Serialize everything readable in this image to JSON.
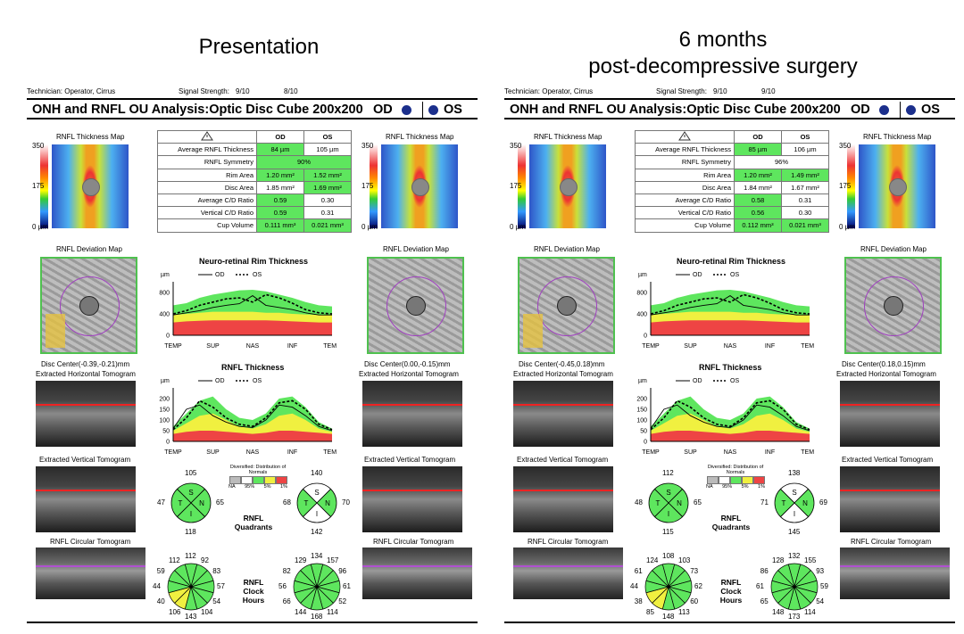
{
  "titles": {
    "left": "Presentation",
    "right_l1": "6 months",
    "right_l2": "post-decompressive surgery"
  },
  "reports": [
    {
      "technician": "Technician:  Operator, Cirrus",
      "signal_label": "Signal Strength:",
      "signal_od": "9/10",
      "signal_os": "8/10",
      "title": "ONH and RNFL OU Analysis:Optic Disc Cube 200x200",
      "od": "OD",
      "os": "OS",
      "map_title": "RNFL Thickness Map",
      "scale": [
        "350",
        "175",
        "0 µm"
      ],
      "table": {
        "head": [
          "OD",
          "OS"
        ],
        "rows": [
          {
            "label": "Average RNFL Thickness",
            "od": "84 µm",
            "os": "105 µm",
            "odg": true,
            "osg": false
          },
          {
            "label": "RNFL Symmetry",
            "span": "90%",
            "g": true
          },
          {
            "label": "Rim Area",
            "od": "1.20 mm²",
            "os": "1.52 mm²",
            "odg": true,
            "osg": true
          },
          {
            "label": "Disc Area",
            "od": "1.85 mm²",
            "os": "1.69 mm²",
            "odg": false,
            "osg": true
          },
          {
            "label": "Average C/D Ratio",
            "od": "0.59",
            "os": "0.30",
            "odg": true,
            "osg": false
          },
          {
            "label": "Vertical C/D Ratio",
            "od": "0.59",
            "os": "0.31",
            "odg": true,
            "osg": false
          },
          {
            "label": "Cup Volume",
            "od": "0.111 mm³",
            "os": "0.021 mm³",
            "odg": true,
            "osg": true
          }
        ]
      },
      "dev_title": "RNFL Deviation Map",
      "disc_od": "Disc Center(-0.39,-0.21)mm",
      "disc_os": "Disc Center(0.00,-0.15)mm",
      "horiz": "Extracted Horizontal Tomogram",
      "vert": "Extracted Vertical Tomogram",
      "circ": "RNFL Circular Tomogram",
      "rim_title": "Neuro-retinal Rim Thickness",
      "rnfl_title": "RNFL Thickness",
      "um": "µm",
      "leg_od": "OD",
      "leg_os": "OS",
      "rim_ticks": [
        "800",
        "400",
        "0"
      ],
      "rnfl_ticks": [
        "200",
        "150",
        "100",
        "50",
        "0"
      ],
      "xticks": [
        "TEMP",
        "SUP",
        "NAS",
        "INF",
        "TEMP"
      ],
      "norm_title": "Diversified: Distribution of Normals",
      "norm_labels": [
        "NA",
        "95%",
        "5%",
        "1%"
      ],
      "quad_label": [
        "RNFL",
        "Quadrants"
      ],
      "clock_label": [
        "RNFL",
        "Clock",
        "Hours"
      ],
      "quad_od": {
        "top": "105",
        "left": "47",
        "right": "65",
        "bottom": "118"
      },
      "quad_os": {
        "top": "140",
        "left": "68",
        "right": "70",
        "bottom": "142"
      },
      "clock_od": [
        "112",
        "92",
        "83",
        "57",
        "54",
        "104",
        "143",
        "106",
        "40",
        "44",
        "59",
        "112"
      ],
      "clock_os": [
        "134",
        "157",
        "96",
        "61",
        "52",
        "114",
        "168",
        "144",
        "66",
        "56",
        "82",
        "129"
      ]
    },
    {
      "technician": "Technician:  Operator, Cirrus",
      "signal_label": "Signal Strength:",
      "signal_od": "9/10",
      "signal_os": "9/10",
      "title": "ONH and RNFL OU Analysis:Optic Disc Cube 200x200",
      "od": "OD",
      "os": "OS",
      "map_title": "RNFL Thickness Map",
      "scale": [
        "350",
        "175",
        "0 µm"
      ],
      "table": {
        "head": [
          "OD",
          "OS"
        ],
        "rows": [
          {
            "label": "Average RNFL Thickness",
            "od": "85 µm",
            "os": "106 µm",
            "odg": true,
            "osg": false
          },
          {
            "label": "RNFL Symmetry",
            "span": "96%",
            "g": false
          },
          {
            "label": "Rim Area",
            "od": "1.20 mm²",
            "os": "1.49 mm²",
            "odg": true,
            "osg": true
          },
          {
            "label": "Disc Area",
            "od": "1.84 mm²",
            "os": "1.67 mm²",
            "odg": false,
            "osg": false
          },
          {
            "label": "Average C/D Ratio",
            "od": "0.58",
            "os": "0.31",
            "odg": true,
            "osg": false
          },
          {
            "label": "Vertical C/D Ratio",
            "od": "0.56",
            "os": "0.30",
            "odg": true,
            "osg": false
          },
          {
            "label": "Cup Volume",
            "od": "0.112 mm³",
            "os": "0.021 mm³",
            "odg": true,
            "osg": true
          }
        ]
      },
      "dev_title": "RNFL Deviation Map",
      "disc_od": "Disc Center(-0.45,0.18)mm",
      "disc_os": "Disc Center(0.18,0.15)mm",
      "horiz": "Extracted Horizontal Tomogram",
      "vert": "Extracted Vertical Tomogram",
      "circ": "RNFL Circular Tomogram",
      "rim_title": "Neuro-retinal Rim Thickness",
      "rnfl_title": "RNFL Thickness",
      "um": "µm",
      "leg_od": "OD",
      "leg_os": "OS",
      "rim_ticks": [
        "800",
        "400",
        "0"
      ],
      "rnfl_ticks": [
        "200",
        "150",
        "100",
        "50",
        "0"
      ],
      "xticks": [
        "TEMP",
        "SUP",
        "NAS",
        "INF",
        "TEMP"
      ],
      "norm_title": "Diversified: Distribution of Normals",
      "norm_labels": [
        "NA",
        "95%",
        "5%",
        "1%"
      ],
      "quad_label": [
        "RNFL",
        "Quadrants"
      ],
      "clock_label": [
        "RNFL",
        "Clock",
        "Hours"
      ],
      "quad_od": {
        "top": "112",
        "left": "48",
        "right": "65",
        "bottom": "115"
      },
      "quad_os": {
        "top": "138",
        "left": "71",
        "right": "69",
        "bottom": "145"
      },
      "clock_od": [
        "108",
        "103",
        "73",
        "62",
        "60",
        "113",
        "148",
        "85",
        "38",
        "44",
        "61",
        "124"
      ],
      "clock_os": [
        "132",
        "155",
        "93",
        "59",
        "54",
        "114",
        "173",
        "148",
        "65",
        "61",
        "86",
        "128"
      ]
    }
  ],
  "colors": {
    "green": "#5ee65e",
    "yellow": "#f0f040",
    "red": "#ee4444",
    "od_dot": "#1b2f8c"
  }
}
